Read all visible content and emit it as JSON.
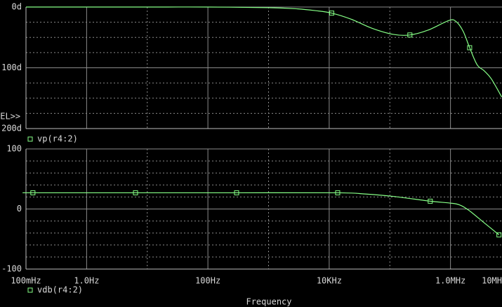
{
  "chart_data": [
    {
      "type": "line",
      "x": [
        0.1,
        1,
        10,
        100,
        1000,
        3000,
        6000,
        11000,
        23000,
        51000,
        114000,
        214000,
        428000,
        950000,
        1240000,
        1620000,
        2070000,
        2750000,
        3600000,
        4700000,
        7000000
      ],
      "series": [
        {
          "name": "vp(r4:2)",
          "color": "#86ff86",
          "values": [
            0,
            0,
            0,
            0,
            -1,
            -3,
            -6,
            -10,
            -20,
            -35,
            -45,
            -46,
            -38,
            -22,
            -24,
            -40,
            -67,
            -95,
            -105,
            -118,
            -148
          ]
        }
      ],
      "xlim": [
        0.1,
        10000000
      ],
      "log_x": true,
      "xticks": [
        0.1,
        1,
        100,
        10000,
        1000000,
        10000000
      ],
      "minor_xticks": [
        10,
        1000,
        100000
      ],
      "ylim": [
        -200,
        0
      ],
      "yticks": [
        {
          "value": 0,
          "label": "0d"
        },
        {
          "value": -100,
          "label": "-100d"
        },
        {
          "value": -200,
          "label": "-200d"
        }
      ],
      "minor_yticks": [
        -25,
        -50,
        -75,
        -125,
        -150,
        -175
      ],
      "annotation": "SEL>>",
      "grid": true
    },
    {
      "type": "line",
      "x": [
        0.1,
        0.13,
        6.4,
        297,
        13800,
        39000,
        114000,
        464000,
        953000,
        1400000,
        2000000,
        3600000,
        6300000
      ],
      "series": [
        {
          "name": "vdb(r4:2)",
          "color": "#86ff86",
          "values": [
            27,
            27,
            27,
            27,
            27,
            25,
            21,
            13,
            10,
            7,
            -2,
            -23,
            -43
          ]
        }
      ],
      "xlim": [
        0.1,
        10000000
      ],
      "log_x": true,
      "xticks": [
        {
          "value": 0.1,
          "label": "100mHz"
        },
        {
          "value": 1,
          "label": "1.0Hz"
        },
        {
          "value": 100,
          "label": "100Hz"
        },
        {
          "value": 10000,
          "label": "10KHz"
        },
        {
          "value": 1000000,
          "label": "1.0MHz"
        },
        {
          "value": 10000000,
          "label": "10MH"
        }
      ],
      "minor_xticks": [
        10,
        1000,
        100000
      ],
      "ylim": [
        -100,
        100
      ],
      "yticks": [
        100,
        0,
        -100
      ],
      "minor_yticks": [
        80,
        60,
        40,
        20,
        -20,
        -40,
        -60,
        -80
      ],
      "xlabel": "Frequency",
      "grid": true
    }
  ]
}
